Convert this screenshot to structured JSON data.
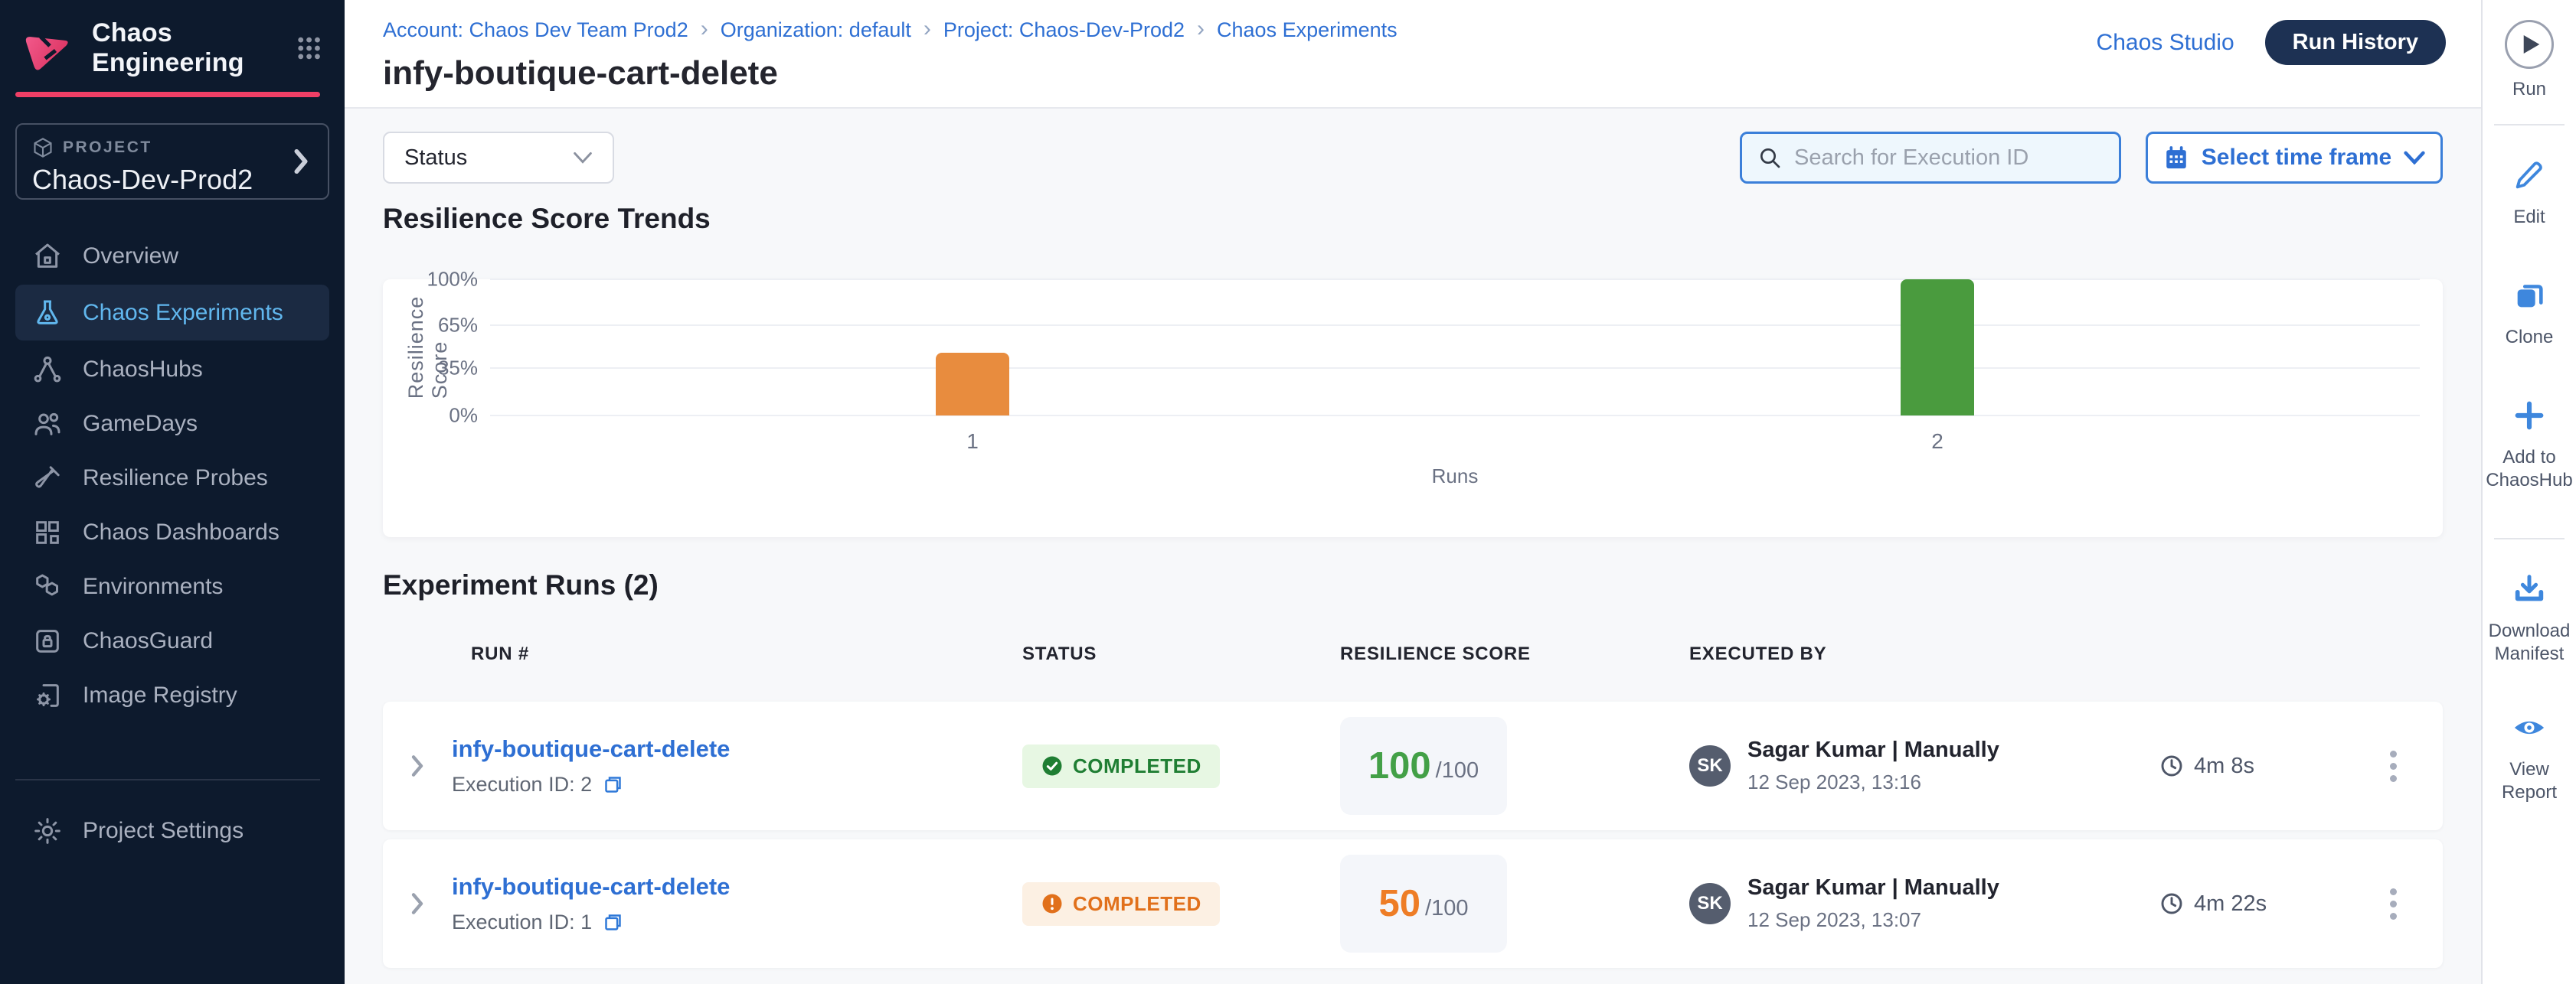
{
  "brand": {
    "app_title": "Chaos Engineering",
    "accent_pink": "#f03f66"
  },
  "header": {
    "breadcrumb_items": [
      "Account: Chaos Dev Team Prod2",
      "Organization: default",
      "Project: Chaos-Dev-Prod2",
      "Chaos Experiments"
    ],
    "page_title": "infy-boutique-cart-delete",
    "chaos_studio_link": "Chaos Studio",
    "run_history_button": "Run History"
  },
  "sidebar": {
    "project_label": "PROJECT",
    "project_name": "Chaos-Dev-Prod2",
    "items": [
      {
        "label": "Overview",
        "icon": "home-icon"
      },
      {
        "label": "Chaos Experiments",
        "icon": "flask-icon"
      },
      {
        "label": "ChaosHubs",
        "icon": "hub-icon"
      },
      {
        "label": "GameDays",
        "icon": "people-icon"
      },
      {
        "label": "Resilience Probes",
        "icon": "test-tube-icon"
      },
      {
        "label": "Chaos Dashboards",
        "icon": "dashboard-icon"
      },
      {
        "label": "Environments",
        "icon": "hexagons-icon"
      },
      {
        "label": "ChaosGuard",
        "icon": "lock-icon"
      },
      {
        "label": "Image Registry",
        "icon": "image-registry-icon"
      }
    ],
    "settings_label": "Project Settings"
  },
  "filters": {
    "status_label": "Status",
    "search_placeholder": "Search for Execution ID",
    "time_frame_label": "Select time frame"
  },
  "trends_title": "Resilience Score Trends",
  "chart_data": {
    "type": "bar",
    "title": "Resilience Score Trends",
    "categories": [
      "1",
      "2"
    ],
    "values": [
      50,
      100
    ],
    "xlabel": "Runs",
    "ylabel": "Resilience Score",
    "yticks": [
      "100%",
      "65%",
      "35%",
      "0%"
    ],
    "ytick_positions_pct": [
      0,
      33.7,
      65.2,
      100
    ],
    "ylim": [
      0,
      100
    ],
    "bar_colors": [
      "#e88c3e",
      "#4a9b3e"
    ],
    "heights_pct": [
      46,
      100
    ],
    "centers_pct": [
      25,
      75
    ],
    "grid": true,
    "legend": false
  },
  "runs_section": {
    "title": "Experiment Runs (2)",
    "columns": [
      "RUN #",
      "STATUS",
      "RESILIENCE SCORE",
      "EXECUTED BY"
    ],
    "status_colors": {
      "success": {
        "fg": "#1f7e33",
        "bg": "#e7f7e3"
      },
      "warning": {
        "fg": "#e1701b",
        "bg": "#fcf0e3"
      }
    },
    "score_colors": {
      "success": "#43a047",
      "warning": "#ee7d26"
    },
    "rows": [
      {
        "name": "infy-boutique-cart-delete",
        "execution_id": "Execution ID: 2",
        "status": "COMPLETED",
        "status_kind": "success",
        "score": "100",
        "score_denominator": "/100",
        "executed_by": "Sagar Kumar | Manually",
        "avatar_initials": "SK",
        "executed_at": "12 Sep 2023, 13:16",
        "duration": "4m 8s"
      },
      {
        "name": "infy-boutique-cart-delete",
        "execution_id": "Execution ID: 1",
        "status": "COMPLETED",
        "status_kind": "warning",
        "score": "50",
        "score_denominator": "/100",
        "executed_by": "Sagar Kumar | Manually",
        "avatar_initials": "SK",
        "executed_at": "12 Sep 2023, 13:07",
        "duration": "4m 22s"
      }
    ]
  },
  "toolbar": {
    "run_label": "Run",
    "edit_label": "Edit",
    "clone_label": "Clone",
    "add_to_chaoshub_label": "Add to ChaosHub",
    "download_manifest_label": "Download Manifest",
    "view_report_label": "View Report"
  }
}
